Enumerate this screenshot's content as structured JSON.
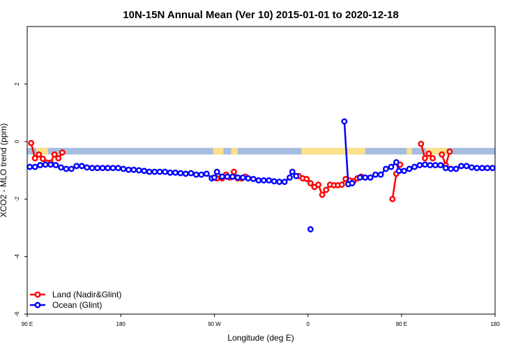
{
  "chart_data": {
    "type": "line",
    "title": "10N-15N Annual Mean (Ver 10)   2015-01-01 to 2020-12-18",
    "xlabel": "Longitude (deg E)",
    "ylabel": "XCO2 - MLO trend (ppm)",
    "xlim": [
      90,
      450
    ],
    "ylim": [
      -6,
      4
    ],
    "x_ticks": [
      {
        "value": 90,
        "label": "90 E"
      },
      {
        "value": 162,
        "label": "180"
      },
      {
        "value": 234,
        "label": "90 W"
      },
      {
        "value": 306,
        "label": "0"
      },
      {
        "value": 378,
        "label": "90 E"
      },
      {
        "value": 450,
        "label": "180"
      }
    ],
    "y_ticks": [
      {
        "value": -6,
        "label": "-6"
      },
      {
        "value": -4,
        "label": "-4"
      },
      {
        "value": -2,
        "label": "-2"
      },
      {
        "value": 0,
        "label": "0"
      },
      {
        "value": 2,
        "label": "2"
      }
    ],
    "land_mask": {
      "y_range": [
        -0.45,
        -0.22
      ],
      "ocean_color": "#a6bddf",
      "land_color": "#fde08a",
      "land_spans": [
        [
          97,
          106
        ],
        [
          233,
          241
        ],
        [
          247,
          252
        ],
        [
          301,
          350
        ],
        [
          382,
          386
        ],
        [
          397,
          413
        ]
      ]
    },
    "legend": {
      "position": "bottom-left"
    },
    "series": [
      {
        "name": "Land (Nadir&Glint)",
        "color": "#ff0000",
        "segments": [
          {
            "x": [
              93,
              96,
              99,
              102,
              105,
              108,
              111,
              114,
              117
            ],
            "y": [
              -0.05,
              -0.58,
              -0.45,
              -0.6,
              -0.73,
              -0.73,
              -0.45,
              -0.58,
              -0.38
            ]
          },
          {
            "x": [
              236,
              240,
              243,
              246,
              249,
              252,
              255,
              258
            ],
            "y": [
              -1.28,
              -1.28,
              -1.15,
              -1.25,
              -1.05,
              -1.28,
              -1.28,
              -1.22
            ]
          },
          {
            "x": [
              299,
              302,
              305,
              308,
              311,
              314,
              317,
              320,
              323,
              326,
              329,
              332,
              335,
              338,
              341,
              344,
              347,
              350
            ],
            "y": [
              -1.2,
              -1.28,
              -1.3,
              -1.45,
              -1.58,
              -1.5,
              -1.85,
              -1.68,
              -1.5,
              -1.52,
              -1.52,
              -1.5,
              -1.3,
              -1.35,
              -1.38,
              -1.28,
              -1.22,
              -1.25
            ]
          },
          {
            "x": [
              371,
              374,
              377
            ],
            "y": [
              -2.0,
              -1.12,
              -0.8
            ]
          },
          {
            "x": [
              393,
              396,
              399,
              402
            ],
            "y": [
              -0.08,
              -0.58,
              -0.42,
              -0.58
            ]
          },
          {
            "x": [
              409,
              412,
              415
            ],
            "y": [
              -0.45,
              -0.82,
              -0.35
            ]
          }
        ]
      },
      {
        "name": "Ocean (Glint)",
        "color": "#0000ff",
        "segments": [
          {
            "x": [
              92,
              96,
              100,
              104,
              108,
              112,
              116,
              120,
              124,
              128,
              132,
              136,
              140,
              144,
              148,
              152,
              156,
              160,
              164,
              168,
              172,
              176,
              180,
              184,
              188,
              192,
              196,
              200,
              204,
              208,
              212,
              216,
              220,
              224,
              228,
              232,
              234,
              236,
              240,
              244,
              248,
              252,
              256,
              260,
              264,
              268,
              272,
              276,
              280,
              284,
              288,
              292,
              294,
              297
            ],
            "y": [
              -0.88,
              -0.88,
              -0.82,
              -0.8,
              -0.8,
              -0.82,
              -0.9,
              -0.95,
              -0.95,
              -0.85,
              -0.85,
              -0.9,
              -0.92,
              -0.92,
              -0.92,
              -0.92,
              -0.92,
              -0.92,
              -0.95,
              -0.98,
              -0.98,
              -1.0,
              -1.02,
              -1.05,
              -1.05,
              -1.05,
              -1.05,
              -1.08,
              -1.08,
              -1.1,
              -1.12,
              -1.1,
              -1.15,
              -1.15,
              -1.12,
              -1.28,
              -1.25,
              -1.05,
              -1.22,
              -1.22,
              -1.22,
              -1.25,
              -1.25,
              -1.28,
              -1.3,
              -1.35,
              -1.35,
              -1.35,
              -1.38,
              -1.4,
              -1.4,
              -1.25,
              -1.05,
              -1.2
            ]
          },
          {
            "x": [
              308
            ],
            "y": [
              -3.05
            ]
          },
          {
            "x": [
              334,
              337,
              340
            ],
            "y": [
              0.7,
              -1.48,
              -1.45
            ]
          },
          {
            "x": [
              346,
              350,
              354,
              358,
              362,
              366,
              370,
              374,
              376,
              380,
              384,
              388,
              392,
              396,
              400,
              404,
              408,
              412,
              416,
              420,
              424,
              428,
              432,
              436,
              440,
              444,
              448
            ],
            "y": [
              -1.25,
              -1.25,
              -1.25,
              -1.15,
              -1.15,
              -0.95,
              -0.88,
              -0.72,
              -1.02,
              -1.02,
              -0.95,
              -0.88,
              -0.82,
              -0.8,
              -0.82,
              -0.82,
              -0.82,
              -0.92,
              -0.95,
              -0.95,
              -0.85,
              -0.85,
              -0.9,
              -0.92,
              -0.92,
              -0.92,
              -0.92
            ]
          }
        ]
      }
    ]
  }
}
